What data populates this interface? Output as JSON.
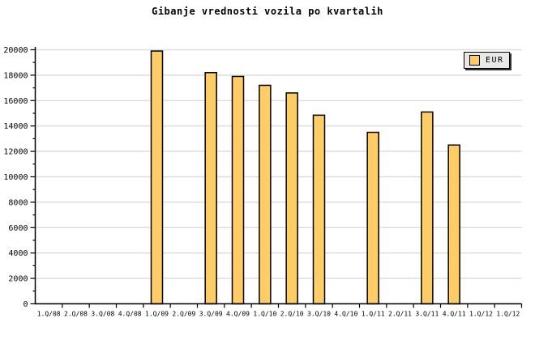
{
  "chart_data": {
    "type": "bar",
    "title": "Gibanje vrednosti vozila po kvartalih",
    "categories": [
      "1.Q/08",
      "2.Q/08",
      "3.Q/08",
      "4.Q/08",
      "1.Q/09",
      "2.Q/09",
      "3.Q/09",
      "4.Q/09",
      "1.Q/10",
      "2.Q/10",
      "3.Q/10",
      "4.Q/10",
      "1.Q/11",
      "2.Q/11",
      "3.Q/11",
      "4.Q/11",
      "1.Q/12",
      "1.Q/12"
    ],
    "series": [
      {
        "name": "EUR",
        "values": [
          null,
          null,
          null,
          null,
          19900,
          null,
          18200,
          17900,
          17200,
          16600,
          14850,
          null,
          13500,
          null,
          15100,
          12500,
          null,
          null
        ]
      }
    ],
    "xlabel": "",
    "ylabel": "",
    "ylim": [
      0,
      20000
    ],
    "ytick_step": 2000,
    "ytick_minor_step": 1000,
    "yticks": [
      0,
      2000,
      4000,
      6000,
      8000,
      10000,
      12000,
      14000,
      16000,
      18000,
      20000
    ],
    "grid": "horizontal",
    "legend_position": "top-right",
    "legend": {
      "label": "EUR"
    },
    "colors": {
      "bar_fill": "#FFCC66",
      "bar_border": "#000000",
      "grid": "#DCDCDC",
      "axis": "#000000",
      "text": "#000000",
      "background": "#FFFFFF",
      "legend_bg": "#E8E8E8",
      "legend_shadow": "#333333"
    }
  }
}
